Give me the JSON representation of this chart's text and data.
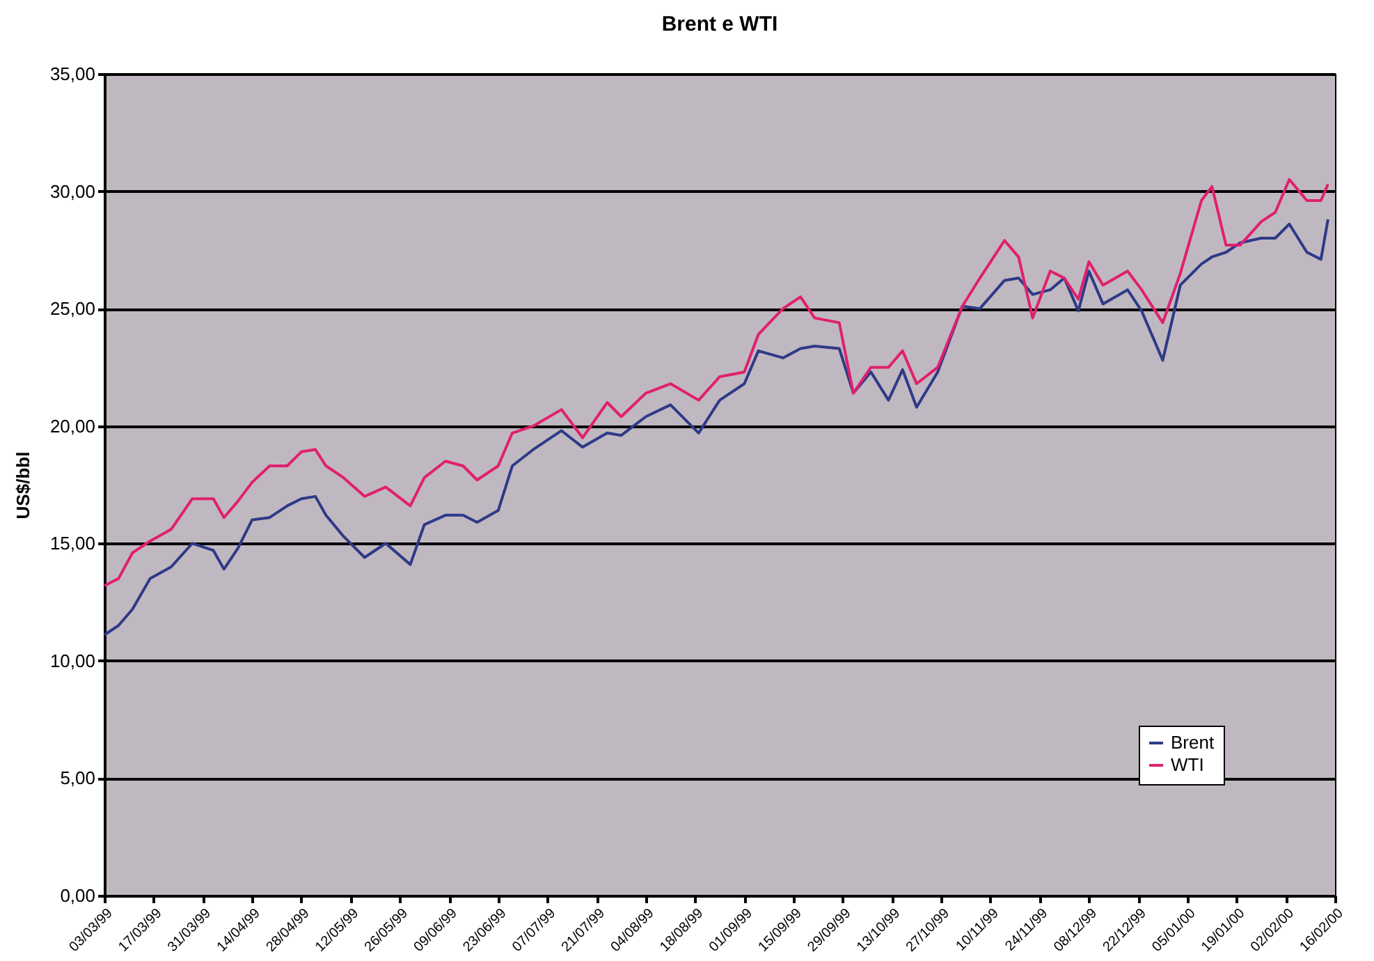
{
  "chart_data": {
    "type": "line",
    "title": "Brent e WTI",
    "ylabel": "US$/bbl",
    "x": [
      "1999-03-03",
      "1999-03-07",
      "1999-03-11",
      "1999-03-16",
      "1999-03-22",
      "1999-03-28",
      "1999-04-03",
      "1999-04-06",
      "1999-04-10",
      "1999-04-14",
      "1999-04-19",
      "1999-04-24",
      "1999-04-28",
      "1999-05-02",
      "1999-05-05",
      "1999-05-10",
      "1999-05-16",
      "1999-05-22",
      "1999-05-29",
      "1999-06-02",
      "1999-06-08",
      "1999-06-13",
      "1999-06-17",
      "1999-06-23",
      "1999-06-27",
      "1999-07-03",
      "1999-07-11",
      "1999-07-17",
      "1999-07-24",
      "1999-07-28",
      "1999-08-04",
      "1999-08-11",
      "1999-08-19",
      "1999-08-25",
      "1999-09-01",
      "1999-09-05",
      "1999-09-12",
      "1999-09-17",
      "1999-09-21",
      "1999-09-28",
      "1999-10-02",
      "1999-10-07",
      "1999-10-12",
      "1999-10-16",
      "1999-10-20",
      "1999-10-26",
      "1999-11-02",
      "1999-11-07",
      "1999-11-14",
      "1999-11-18",
      "1999-11-22",
      "1999-11-27",
      "1999-12-01",
      "1999-12-05",
      "1999-12-08",
      "1999-12-12",
      "1999-12-19",
      "1999-12-23",
      "1999-12-29",
      "2000-01-03",
      "2000-01-09",
      "2000-01-12",
      "2000-01-16",
      "2000-01-20",
      "2000-01-26",
      "2000-01-30",
      "2000-02-03",
      "2000-02-08",
      "2000-02-12",
      "2000-02-14"
    ],
    "series": [
      {
        "name": "Brent",
        "color": "#2e3a87",
        "values": [
          11.1,
          11.5,
          12.2,
          13.5,
          14.0,
          15.0,
          14.7,
          13.9,
          14.8,
          16.0,
          16.1,
          16.6,
          16.9,
          17.0,
          16.2,
          15.3,
          14.4,
          15.0,
          14.1,
          15.8,
          16.2,
          16.2,
          15.9,
          16.4,
          18.3,
          19.0,
          19.8,
          19.1,
          19.7,
          19.6,
          20.4,
          20.9,
          19.7,
          21.1,
          21.8,
          23.2,
          22.9,
          23.3,
          23.4,
          23.3,
          21.4,
          22.3,
          21.1,
          22.4,
          20.8,
          22.3,
          25.1,
          25.0,
          26.2,
          26.3,
          25.6,
          25.8,
          26.3,
          24.9,
          26.6,
          25.2,
          25.8,
          24.9,
          22.8,
          26.0,
          26.9,
          27.2,
          27.4,
          27.8,
          28.0,
          28.0,
          28.6,
          27.4,
          27.1,
          28.8
        ]
      },
      {
        "name": "WTI",
        "color": "#e0206e",
        "values": [
          13.2,
          13.5,
          14.6,
          15.1,
          15.6,
          16.9,
          16.9,
          16.1,
          16.8,
          17.6,
          18.3,
          18.3,
          18.9,
          19.0,
          18.3,
          17.8,
          17.0,
          17.4,
          16.6,
          17.8,
          18.5,
          18.3,
          17.7,
          18.3,
          19.7,
          20.0,
          20.7,
          19.5,
          21.0,
          20.4,
          21.4,
          21.8,
          21.1,
          22.1,
          22.3,
          23.9,
          25.0,
          25.5,
          24.6,
          24.4,
          21.4,
          22.5,
          22.5,
          23.2,
          21.8,
          22.5,
          25.1,
          26.3,
          27.9,
          27.2,
          24.6,
          26.6,
          26.3,
          25.4,
          27.0,
          26.0,
          26.6,
          25.8,
          24.4,
          26.5,
          29.6,
          30.2,
          27.7,
          27.7,
          28.7,
          29.1,
          30.5,
          29.6,
          29.6,
          30.3
        ]
      }
    ],
    "xlim": [
      "1999-03-03",
      "2000-02-16"
    ],
    "xticks": [
      {
        "value": "1999-03-03",
        "label": "03/03/99"
      },
      {
        "value": "1999-03-17",
        "label": "17/03/99"
      },
      {
        "value": "1999-03-31",
        "label": "31/03/99"
      },
      {
        "value": "1999-04-14",
        "label": "14/04/99"
      },
      {
        "value": "1999-04-28",
        "label": "28/04/99"
      },
      {
        "value": "1999-05-12",
        "label": "12/05/99"
      },
      {
        "value": "1999-05-26",
        "label": "26/05/99"
      },
      {
        "value": "1999-06-09",
        "label": "09/06/99"
      },
      {
        "value": "1999-06-23",
        "label": "23/06/99"
      },
      {
        "value": "1999-07-07",
        "label": "07/07/99"
      },
      {
        "value": "1999-07-21",
        "label": "21/07/99"
      },
      {
        "value": "1999-08-04",
        "label": "04/08/99"
      },
      {
        "value": "1999-08-18",
        "label": "18/08/99"
      },
      {
        "value": "1999-09-01",
        "label": "01/09/99"
      },
      {
        "value": "1999-09-15",
        "label": "15/09/99"
      },
      {
        "value": "1999-09-29",
        "label": "29/09/99"
      },
      {
        "value": "1999-10-13",
        "label": "13/10/99"
      },
      {
        "value": "1999-10-27",
        "label": "27/10/99"
      },
      {
        "value": "1999-11-10",
        "label": "10/11/99"
      },
      {
        "value": "1999-11-24",
        "label": "24/11/99"
      },
      {
        "value": "1999-12-08",
        "label": "08/12/99"
      },
      {
        "value": "1999-12-22",
        "label": "22/12/99"
      },
      {
        "value": "2000-01-05",
        "label": "05/01/00"
      },
      {
        "value": "2000-01-19",
        "label": "19/01/00"
      },
      {
        "value": "2000-02-02",
        "label": "02/02/00"
      },
      {
        "value": "2000-02-16",
        "label": "16/02/00"
      }
    ],
    "ylim": [
      0,
      35
    ],
    "yticks": [
      {
        "value": 0,
        "label": "0,00"
      },
      {
        "value": 5,
        "label": "5,00"
      },
      {
        "value": 10,
        "label": "10,00"
      },
      {
        "value": 15,
        "label": "15,00"
      },
      {
        "value": 20,
        "label": "20,00"
      },
      {
        "value": 25,
        "label": "25,00"
      },
      {
        "value": 30,
        "label": "30,00"
      },
      {
        "value": 35,
        "label": "35,00"
      }
    ],
    "grid": "y",
    "legend": "bottom right",
    "line_style": "solid",
    "marker": "none"
  }
}
